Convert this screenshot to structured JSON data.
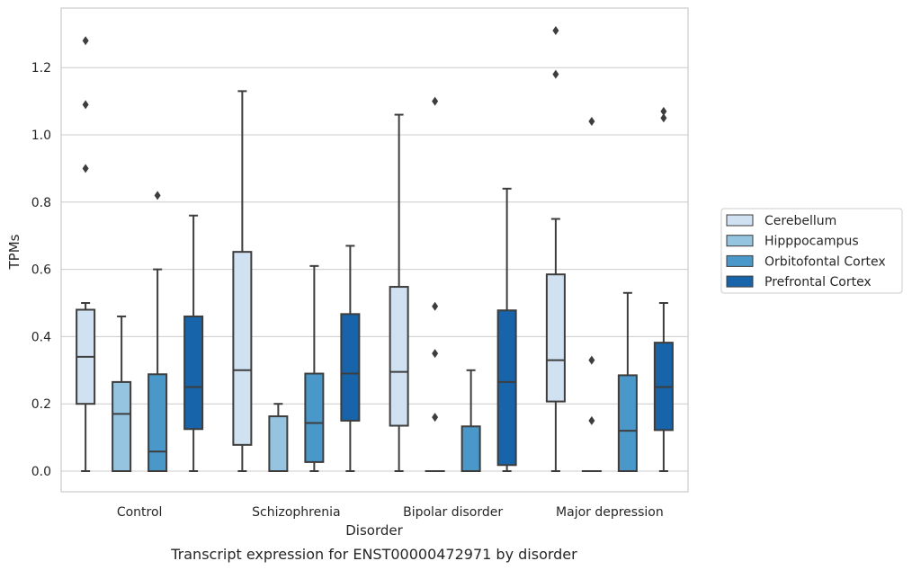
{
  "chart_data": {
    "type": "boxplot",
    "caption": "Transcript expression for ENST00000472971 by disorder",
    "xlabel": "Disorder",
    "ylabel": "TPMs",
    "ylim": [
      -0.065,
      1.375
    ],
    "yticks": [
      0.0,
      0.2,
      0.4,
      0.6,
      0.8,
      1.0,
      1.2
    ],
    "ytick_labels": [
      "0.0",
      "0.2",
      "0.4",
      "0.6",
      "0.8",
      "1.0",
      "1.2"
    ],
    "grid": "horizontal",
    "legend_position": "right",
    "categories": [
      "Control",
      "Schizophrenia",
      "Bipolar disorder",
      "Major depression"
    ],
    "series": [
      {
        "name": "Cerebellum",
        "color": "#d0e1f2",
        "boxes": [
          {
            "whislo": 0.0,
            "q1": 0.2,
            "med": 0.34,
            "q3": 0.48,
            "whishi": 0.5,
            "fliers": [
              0.9,
              1.09,
              1.28
            ]
          },
          {
            "whislo": 0.0,
            "q1": 0.078,
            "med": 0.3,
            "q3": 0.652,
            "whishi": 1.13,
            "fliers": []
          },
          {
            "whislo": 0.0,
            "q1": 0.135,
            "med": 0.295,
            "q3": 0.548,
            "whishi": 1.06,
            "fliers": []
          },
          {
            "whislo": 0.0,
            "q1": 0.207,
            "med": 0.33,
            "q3": 0.585,
            "whishi": 0.75,
            "fliers": [
              1.18,
              1.31
            ]
          }
        ]
      },
      {
        "name": "Hipppocampus",
        "color": "#94c4df",
        "boxes": [
          {
            "whislo": 0.0,
            "q1": 0.0,
            "med": 0.17,
            "q3": 0.265,
            "whishi": 0.46,
            "fliers": []
          },
          {
            "whislo": 0.0,
            "q1": 0.0,
            "med": 0.0,
            "q3": 0.163,
            "whishi": 0.2,
            "fliers": []
          },
          {
            "whislo": 0.0,
            "q1": 0.0,
            "med": 0.0,
            "q3": 0.0,
            "whishi": 0.0,
            "fliers": [
              0.16,
              0.35,
              0.49,
              1.1
            ]
          },
          {
            "whislo": 0.0,
            "q1": 0.0,
            "med": 0.0,
            "q3": 0.0,
            "whishi": 0.0,
            "fliers": [
              0.15,
              0.33,
              1.04
            ]
          }
        ]
      },
      {
        "name": "Orbitofontal Cortex",
        "color": "#4a98c9",
        "boxes": [
          {
            "whislo": 0.0,
            "q1": 0.0,
            "med": 0.058,
            "q3": 0.288,
            "whishi": 0.6,
            "fliers": [
              0.82
            ]
          },
          {
            "whislo": 0.0,
            "q1": 0.027,
            "med": 0.143,
            "q3": 0.29,
            "whishi": 0.61,
            "fliers": []
          },
          {
            "whislo": 0.0,
            "q1": 0.0,
            "med": 0.0,
            "q3": 0.133,
            "whishi": 0.3,
            "fliers": []
          },
          {
            "whislo": 0.0,
            "q1": 0.0,
            "med": 0.12,
            "q3": 0.285,
            "whishi": 0.53,
            "fliers": []
          }
        ]
      },
      {
        "name": "Prefrontal Cortex",
        "color": "#1764ab",
        "boxes": [
          {
            "whislo": 0.0,
            "q1": 0.125,
            "med": 0.25,
            "q3": 0.46,
            "whishi": 0.76,
            "fliers": []
          },
          {
            "whislo": 0.0,
            "q1": 0.15,
            "med": 0.29,
            "q3": 0.467,
            "whishi": 0.67,
            "fliers": []
          },
          {
            "whislo": 0.0,
            "q1": 0.018,
            "med": 0.265,
            "q3": 0.478,
            "whishi": 0.84,
            "fliers": []
          },
          {
            "whislo": 0.0,
            "q1": 0.122,
            "med": 0.25,
            "q3": 0.382,
            "whishi": 0.5,
            "fliers": [
              1.05,
              1.07
            ]
          }
        ]
      }
    ]
  }
}
